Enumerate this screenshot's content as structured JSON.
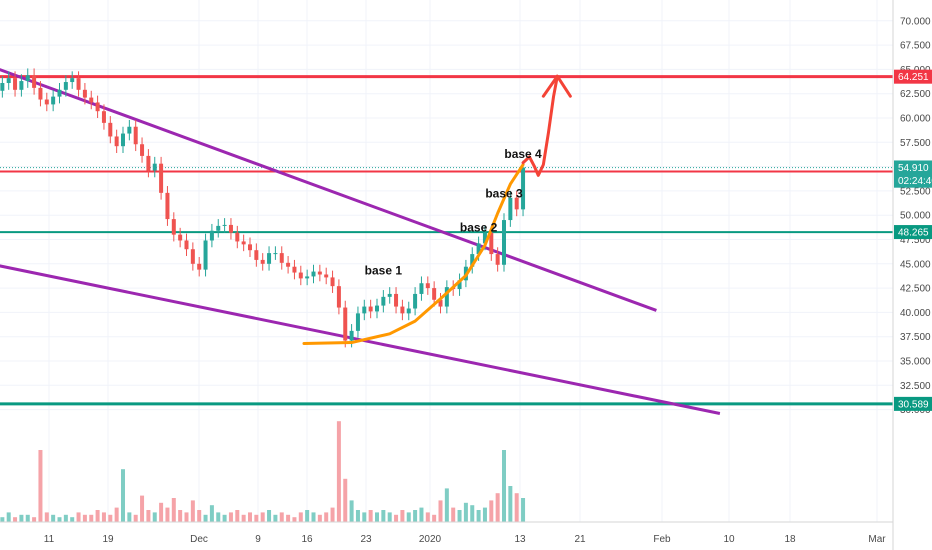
{
  "chart_data": {
    "type": "candlestick",
    "y_range": [
      29.5,
      71.5
    ],
    "y_ticks": [
      "70.000",
      "67.500",
      "65.000",
      "62.500",
      "60.000",
      "57.500",
      "55.000",
      "52.500",
      "50.000",
      "47.500",
      "45.000",
      "42.500",
      "40.000",
      "37.500",
      "35.000",
      "32.500",
      "30.000"
    ],
    "y_tick_values": [
      70,
      67.5,
      65,
      62.5,
      60,
      57.5,
      55,
      52.5,
      50,
      47.5,
      45,
      42.5,
      40,
      37.5,
      35,
      32.5,
      30
    ],
    "x_ticks": [
      "11",
      "19",
      "Dec",
      "9",
      "16",
      "23",
      "2020",
      "13",
      "21",
      "Feb",
      "10",
      "18",
      "Mar"
    ],
    "horizontal_levels": [
      {
        "value": 64.251,
        "label": "64.251",
        "color": "#f23645"
      },
      {
        "value": 54.501,
        "label": "54.501",
        "color": "#f23645"
      },
      {
        "value": 48.265,
        "label": "48.265",
        "color": "#089981"
      },
      {
        "value": 30.589,
        "label": "30.589",
        "color": "#089981"
      }
    ],
    "price_tags": [
      {
        "value": 54.91,
        "label": "54.910",
        "color": "#26a69a"
      },
      {
        "value": 53.55,
        "label": "02:24:40",
        "color": "#26a69a"
      }
    ],
    "annotations": [
      {
        "text": "base 1",
        "x_day": 61,
        "value": 43.9
      },
      {
        "text": "base 2",
        "x_day": 76,
        "value": 48.3
      },
      {
        "text": "base 3",
        "x_day": 80,
        "value": 51.8
      },
      {
        "text": "base 4",
        "x_day": 83,
        "value": 55.9
      }
    ],
    "trend_lines": [
      {
        "name": "upper",
        "color": "#9c27b0",
        "points": [
          [
            -7,
            66.8
          ],
          [
            104,
            40.2
          ]
        ]
      },
      {
        "name": "lower",
        "color": "#9c27b0",
        "points": [
          [
            -7,
            45.8
          ],
          [
            114,
            29.6
          ]
        ]
      }
    ],
    "curve_points": [
      [
        48.5,
        36.8
      ],
      [
        56,
        36.9
      ],
      [
        62,
        37.8
      ],
      [
        66,
        39.1
      ],
      [
        70,
        41.4
      ],
      [
        74,
        43.8
      ],
      [
        77,
        46.9
      ],
      [
        79,
        50.2
      ],
      [
        81,
        53.2
      ],
      [
        83,
        55.2
      ]
    ],
    "projection_points": [
      [
        83,
        55.4
      ],
      [
        84,
        56.0
      ],
      [
        84.8,
        55.0
      ],
      [
        85.4,
        54.1
      ],
      [
        86.2,
        55.2
      ],
      [
        87,
        58.5
      ],
      [
        87.8,
        62.2
      ],
      [
        88.4,
        64.3
      ]
    ],
    "candles_close": [
      62.8,
      63.6,
      64.1,
      62.9,
      63.8,
      64.4,
      63.1,
      61.9,
      61.4,
      62.2,
      62.9,
      63.7,
      64.1,
      62.9,
      62.1,
      61.6,
      60.7,
      59.5,
      58.1,
      57.1,
      58.4,
      59.1,
      57.3,
      56.1,
      54.6,
      55.3,
      52.3,
      49.6,
      48.0,
      47.4,
      46.5,
      45.0,
      44.4,
      47.4,
      48.4,
      48.9,
      49.0,
      48.2,
      47.3,
      47.0,
      46.4,
      45.4,
      45.0,
      46.1,
      46.1,
      45.1,
      44.7,
      44.1,
      43.5,
      43.7,
      44.2,
      43.9,
      43.6,
      42.7,
      40.5,
      37.1,
      38.1,
      39.9,
      40.6,
      40.1,
      40.7,
      41.6,
      41.9,
      40.6,
      39.9,
      40.4,
      41.9,
      43.0,
      42.5,
      41.3,
      40.6,
      42.6,
      42.4,
      43.3,
      44.7,
      46.0,
      47.1,
      48.2,
      46.0,
      44.9,
      49.5,
      51.8,
      50.6,
      54.9
    ],
    "candles_open": [
      63.2,
      62.8,
      63.6,
      64.1,
      62.9,
      63.8,
      64.4,
      63.1,
      61.9,
      61.4,
      62.2,
      62.9,
      63.7,
      64.1,
      62.9,
      62.1,
      61.6,
      60.7,
      59.5,
      58.1,
      57.1,
      58.4,
      59.1,
      57.3,
      56.1,
      54.6,
      55.3,
      52.3,
      49.6,
      48.0,
      47.4,
      46.5,
      45.0,
      44.4,
      47.4,
      48.4,
      48.9,
      49.0,
      48.2,
      47.3,
      47.0,
      46.4,
      45.4,
      45.0,
      46.1,
      46.1,
      45.1,
      44.7,
      44.1,
      43.5,
      43.7,
      44.2,
      43.9,
      43.6,
      42.7,
      40.5,
      37.1,
      38.1,
      39.9,
      40.6,
      40.1,
      40.7,
      41.6,
      41.9,
      40.6,
      39.9,
      40.4,
      41.9,
      43.0,
      42.5,
      41.3,
      40.6,
      42.6,
      42.4,
      43.3,
      44.7,
      46.0,
      47.1,
      48.2,
      46.0,
      44.9,
      49.5,
      51.8,
      50.6
    ],
    "volumes": [
      3,
      2,
      4,
      2,
      3,
      3,
      2,
      30,
      4,
      3,
      2,
      3,
      2,
      4,
      3,
      3,
      5,
      4,
      3,
      6,
      22,
      4,
      3,
      11,
      5,
      4,
      8,
      6,
      10,
      5,
      4,
      9,
      5,
      3,
      7,
      4,
      3,
      4,
      5,
      3,
      4,
      3,
      4,
      5,
      3,
      4,
      3,
      2,
      4,
      5,
      4,
      3,
      4,
      6,
      42,
      18,
      9,
      5,
      4,
      5,
      4,
      5,
      4,
      3,
      5,
      4,
      5,
      6,
      4,
      3,
      9,
      14,
      6,
      5,
      8,
      7,
      5,
      6,
      9,
      12,
      30,
      15,
      12,
      10
    ]
  }
}
